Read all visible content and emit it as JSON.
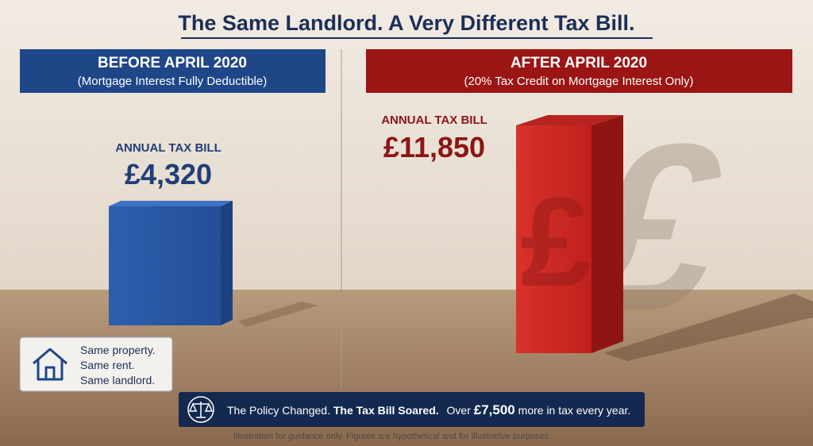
{
  "title": "The Same Landlord. A Very Different Tax Bill.",
  "before": {
    "heading": "BEFORE APRIL 2020",
    "subheading": "(Mortgage Interest Fully Deductible)",
    "label": "ANNUAL TAX BILL",
    "amount": "£4,320"
  },
  "after": {
    "heading": "AFTER APRIL 2020",
    "subheading": "(20% Tax Credit on Mortgage Interest Only)",
    "label": "ANNUAL TAX BILL",
    "amount": "£11,850"
  },
  "note": {
    "lines": [
      "Same property.",
      "Same rent.",
      "Same landlord."
    ]
  },
  "banner": {
    "part1": "The Policy Changed.",
    "part2": "The Tax Bill Soared.",
    "part3": "Over",
    "part4": "£7,500",
    "part5": "more in tax every year."
  },
  "footer": "Illustration for guidance only. Figures are hypothetical and for illustrative purposes."
}
